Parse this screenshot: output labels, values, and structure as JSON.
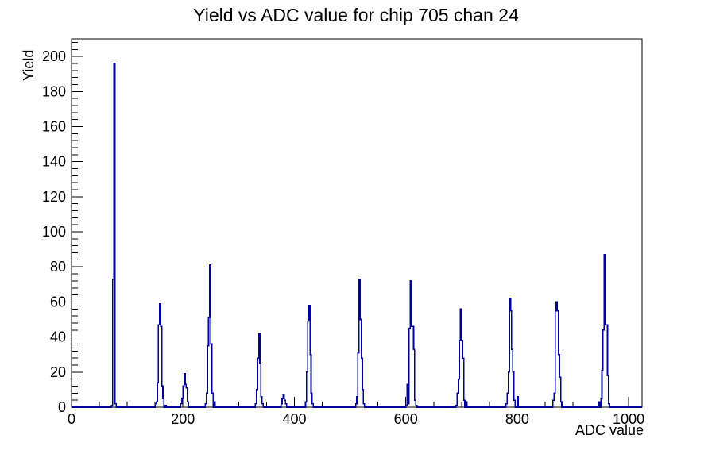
{
  "title": "Yield vs ADC value for chip 705 chan 24",
  "colors": {
    "line": "#000099",
    "axis": "#000000",
    "text": "#000000",
    "background": "#ffffff"
  },
  "chart_data": {
    "type": "bar",
    "title": "Yield vs ADC value for chip 705 chan 24",
    "xlabel": "ADC value",
    "ylabel": "Yield",
    "xlim": [
      0,
      1024
    ],
    "ylim": [
      0,
      210
    ],
    "x_major_ticks": [
      0,
      200,
      400,
      600,
      800,
      1000
    ],
    "x_minor_step": 50,
    "y_major_ticks": [
      0,
      20,
      40,
      60,
      80,
      100,
      120,
      140,
      160,
      180,
      200
    ],
    "y_minor_step": 4,
    "grid": false,
    "legend": false,
    "bin_width": 2,
    "bins": [
      [
        72,
        1
      ],
      [
        74,
        73
      ],
      [
        76,
        196
      ],
      [
        78,
        2
      ],
      [
        150,
        2
      ],
      [
        152,
        3
      ],
      [
        154,
        14
      ],
      [
        156,
        47
      ],
      [
        158,
        59
      ],
      [
        160,
        46
      ],
      [
        162,
        12
      ],
      [
        164,
        5
      ],
      [
        168,
        1
      ],
      [
        196,
        2
      ],
      [
        198,
        5
      ],
      [
        200,
        12
      ],
      [
        202,
        19
      ],
      [
        204,
        13
      ],
      [
        206,
        11
      ],
      [
        208,
        3
      ],
      [
        240,
        2
      ],
      [
        242,
        8
      ],
      [
        244,
        35
      ],
      [
        246,
        51
      ],
      [
        248,
        81
      ],
      [
        250,
        36
      ],
      [
        252,
        8
      ],
      [
        256,
        3
      ],
      [
        330,
        2
      ],
      [
        332,
        10
      ],
      [
        334,
        28
      ],
      [
        336,
        42
      ],
      [
        338,
        25
      ],
      [
        340,
        6
      ],
      [
        342,
        2
      ],
      [
        376,
        2
      ],
      [
        378,
        5
      ],
      [
        380,
        7
      ],
      [
        382,
        4
      ],
      [
        384,
        2
      ],
      [
        420,
        3
      ],
      [
        422,
        20
      ],
      [
        424,
        49
      ],
      [
        426,
        58
      ],
      [
        428,
        30
      ],
      [
        430,
        8
      ],
      [
        432,
        2
      ],
      [
        510,
        2
      ],
      [
        512,
        6
      ],
      [
        514,
        31
      ],
      [
        516,
        73
      ],
      [
        518,
        50
      ],
      [
        520,
        28
      ],
      [
        522,
        10
      ],
      [
        524,
        2
      ],
      [
        600,
        1
      ],
      [
        602,
        13
      ],
      [
        604,
        2
      ],
      [
        606,
        45
      ],
      [
        608,
        72
      ],
      [
        610,
        46
      ],
      [
        612,
        46
      ],
      [
        614,
        33
      ],
      [
        616,
        4
      ],
      [
        618,
        1
      ],
      [
        690,
        1
      ],
      [
        692,
        8
      ],
      [
        694,
        16
      ],
      [
        696,
        38
      ],
      [
        698,
        56
      ],
      [
        700,
        38
      ],
      [
        702,
        28
      ],
      [
        704,
        4
      ],
      [
        708,
        3
      ],
      [
        780,
        2
      ],
      [
        782,
        8
      ],
      [
        784,
        20
      ],
      [
        786,
        62
      ],
      [
        788,
        55
      ],
      [
        790,
        33
      ],
      [
        792,
        20
      ],
      [
        794,
        4
      ],
      [
        800,
        6
      ],
      [
        864,
        4
      ],
      [
        866,
        8
      ],
      [
        868,
        55
      ],
      [
        870,
        60
      ],
      [
        872,
        55
      ],
      [
        874,
        30
      ],
      [
        876,
        17
      ],
      [
        878,
        3
      ],
      [
        946,
        3
      ],
      [
        950,
        5
      ],
      [
        952,
        21
      ],
      [
        954,
        44
      ],
      [
        956,
        87
      ],
      [
        958,
        47
      ],
      [
        960,
        47
      ],
      [
        962,
        18
      ],
      [
        964,
        2
      ]
    ]
  }
}
